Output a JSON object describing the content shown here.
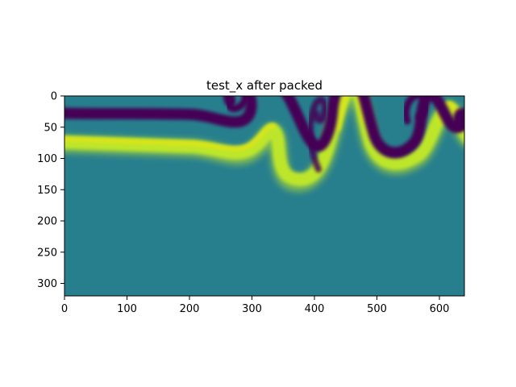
{
  "chart_data": {
    "type": "heatmap",
    "title": "test_x after packed",
    "xlabel": "",
    "ylabel": "",
    "colormap": "viridis",
    "background_color": "#277f8e",
    "light_band_color": "#bde62c",
    "bright_band_color": "#e3e419",
    "dark_band_color": "#440154",
    "x_range": [
      0,
      640
    ],
    "y_range": [
      320,
      0
    ],
    "x_ticks": [
      0,
      100,
      200,
      300,
      400,
      500,
      600
    ],
    "y_ticks": [
      0,
      50,
      100,
      150,
      200,
      250,
      300
    ],
    "x_tick_labels": [
      "0",
      "100",
      "200",
      "300",
      "400",
      "500",
      "600"
    ],
    "y_tick_labels": [
      "0",
      "50",
      "100",
      "150",
      "200",
      "250",
      "300"
    ],
    "grid": false,
    "legend": "none"
  }
}
